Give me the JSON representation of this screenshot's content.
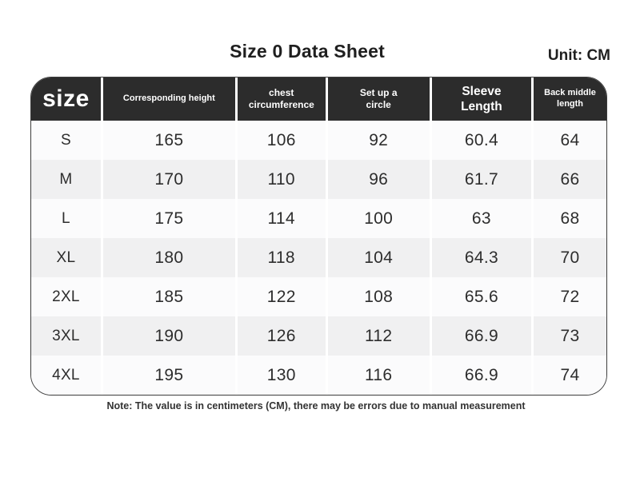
{
  "page": {
    "title": "Size 0 Data Sheet",
    "unit_label": "Unit: CM",
    "note": "Note: The value is in centimeters (CM), there may be errors due to manual measurement"
  },
  "table": {
    "columns": [
      {
        "key": "size",
        "label": "size"
      },
      {
        "key": "height",
        "label": "Corresponding height"
      },
      {
        "key": "chest",
        "label": "chest circumference"
      },
      {
        "key": "circle",
        "label": "Set up a circle"
      },
      {
        "key": "sleeve",
        "label": "Sleeve Length"
      },
      {
        "key": "back",
        "label": "Back middle length"
      }
    ],
    "rows": [
      [
        "S",
        "165",
        "106",
        "92",
        "60.4",
        "64"
      ],
      [
        "M",
        "170",
        "110",
        "96",
        "61.7",
        "66"
      ],
      [
        "L",
        "175",
        "114",
        "100",
        "63",
        "68"
      ],
      [
        "XL",
        "180",
        "118",
        "104",
        "64.3",
        "70"
      ],
      [
        "2XL",
        "185",
        "122",
        "108",
        "65.6",
        "72"
      ],
      [
        "3XL",
        "190",
        "126",
        "112",
        "66.9",
        "73"
      ],
      [
        "4XL",
        "195",
        "130",
        "116",
        "66.9",
        "74"
      ]
    ]
  },
  "colors": {
    "header_bg": "#2c2c2c",
    "header_text": "#ffffff",
    "row_bg": "#fbfbfc",
    "row_alt_bg": "#f0f0f1",
    "outline": "#3d3d3d",
    "body_text": "#2d2d2d"
  }
}
